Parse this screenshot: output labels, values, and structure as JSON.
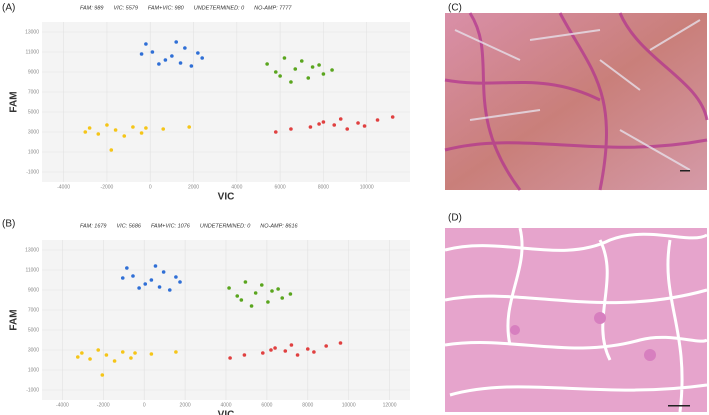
{
  "panels": [
    "(A)",
    "(B)",
    "(C)",
    "(D)"
  ],
  "chart_data": [
    {
      "type": "scatter",
      "stats": [
        "FAM: 989",
        "VIC: 5579",
        "FAM+VIC: 980",
        "UNDETERMINED: 0",
        "NO-AMP: 7777"
      ],
      "xlabel": "VIC",
      "ylabel": "FAM",
      "xlim": [
        -5000,
        12000
      ],
      "ylim": [
        -2000,
        14000
      ],
      "xticks": [
        -4000,
        -2000,
        0,
        2000,
        4000,
        6000,
        8000,
        10000
      ],
      "yticks": [
        -1000,
        1000,
        3000,
        5000,
        7000,
        9000,
        11000,
        13000
      ],
      "grid": true,
      "series": [
        {
          "color": "#2f6fd6",
          "x": [
            1000,
            -200,
            2200,
            400,
            1600,
            700,
            1900,
            -400,
            1200,
            2400,
            100,
            1400
          ],
          "y": [
            10600,
            11800,
            10900,
            9800,
            11400,
            10200,
            9600,
            10800,
            12000,
            10400,
            11000,
            9900
          ]
        },
        {
          "color": "#5aa51e",
          "x": [
            6700,
            5400,
            8000,
            6200,
            7300,
            5800,
            7800,
            6500,
            7000,
            8400,
            6000,
            7500
          ],
          "y": [
            9300,
            9800,
            8800,
            10400,
            8400,
            9000,
            9700,
            8000,
            10100,
            9200,
            8600,
            9500
          ]
        },
        {
          "color": "#e04040",
          "x": [
            8500,
            6500,
            10500,
            7400,
            9600,
            8000,
            9100,
            11200,
            5800,
            7800,
            9900,
            8800
          ],
          "y": [
            3700,
            3300,
            4200,
            3500,
            3900,
            4000,
            3300,
            4500,
            3000,
            3800,
            3600,
            4300
          ]
        },
        {
          "color": "#f5c518",
          "x": [
            -1600,
            -3000,
            -200,
            -2400,
            -800,
            -1200,
            -2000,
            600,
            1800,
            -2800,
            -400,
            -1800
          ],
          "y": [
            3200,
            3000,
            3400,
            2800,
            3500,
            2600,
            3700,
            3300,
            3500,
            3400,
            2900,
            1200
          ]
        }
      ]
    },
    {
      "type": "scatter",
      "stats": [
        "FAM: 1679",
        "VIC: 5686",
        "FAM+VIC: 1076",
        "UNDETERMINED: 0",
        "NO-AMP: 8616"
      ],
      "xlabel": "VIC",
      "ylabel": "FAM",
      "xlim": [
        -5000,
        13000
      ],
      "ylim": [
        -2000,
        14000
      ],
      "xticks": [
        -4000,
        -2000,
        0,
        2000,
        4000,
        6000,
        8000,
        10000,
        12000
      ],
      "yticks": [
        -1000,
        1000,
        3000,
        5000,
        7000,
        9000,
        11000,
        13000
      ],
      "grid": true,
      "series": [
        {
          "color": "#2f6fd6",
          "x": [
            350,
            -850,
            1550,
            -250,
            950,
            50,
            1250,
            -1050,
            550,
            1750,
            -550,
            750
          ],
          "y": [
            10000,
            11200,
            10300,
            9200,
            10800,
            9600,
            9000,
            10200,
            11400,
            9800,
            10400,
            9300
          ]
        },
        {
          "color": "#5aa51e",
          "x": [
            5450,
            4150,
            6750,
            4950,
            6050,
            4550,
            6550,
            5250,
            5750,
            7150,
            4750,
            6250
          ],
          "y": [
            8700,
            9200,
            8200,
            9800,
            7800,
            8400,
            9100,
            7400,
            9500,
            8600,
            8000,
            8900
          ]
        },
        {
          "color": "#e04040",
          "x": [
            6900,
            4900,
            8900,
            5800,
            8000,
            6400,
            7500,
            9600,
            4200,
            6200,
            8300,
            7200
          ],
          "y": [
            2900,
            2500,
            3400,
            2700,
            3100,
            3200,
            2500,
            3700,
            2200,
            3000,
            2800,
            3500
          ]
        },
        {
          "color": "#f5c518",
          "x": [
            -1850,
            -3250,
            -450,
            -2650,
            -1050,
            -1450,
            -2250,
            350,
            1550,
            -3050,
            -650,
            -2050
          ],
          "y": [
            2500,
            2300,
            2700,
            2100,
            2800,
            1900,
            3000,
            2600,
            2800,
            2700,
            2200,
            500
          ]
        }
      ]
    }
  ]
}
